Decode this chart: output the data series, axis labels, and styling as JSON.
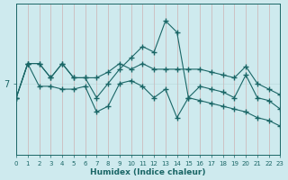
{
  "xlabel": "Humidex (Indice chaleur)",
  "background_color": "#ceeaee",
  "grid_color": "#aacccc",
  "line_color": "#1a6666",
  "x_ticks": [
    0,
    1,
    2,
    3,
    4,
    5,
    6,
    7,
    8,
    9,
    10,
    11,
    12,
    13,
    14,
    15,
    16,
    17,
    18,
    19,
    20,
    21,
    22,
    23
  ],
  "y_tick_label": "7",
  "y_tick_val": 7.0,
  "series1_y": [
    6.5,
    7.7,
    7.7,
    7.2,
    7.7,
    7.2,
    7.2,
    7.2,
    7.4,
    7.7,
    7.5,
    7.7,
    7.5,
    7.5,
    7.5,
    7.5,
    7.5,
    7.4,
    7.3,
    7.2,
    7.6,
    7.0,
    6.8,
    6.6
  ],
  "series2_y": [
    6.5,
    7.7,
    7.7,
    7.2,
    7.7,
    7.2,
    7.2,
    6.5,
    7.0,
    7.5,
    7.9,
    8.3,
    8.1,
    9.2,
    8.8,
    6.5,
    6.9,
    6.8,
    6.7,
    6.5,
    7.3,
    6.5,
    6.4,
    6.1
  ],
  "series3_y": [
    6.5,
    7.7,
    6.9,
    6.9,
    6.8,
    6.8,
    6.9,
    6.0,
    6.2,
    7.0,
    7.1,
    6.9,
    6.5,
    6.8,
    5.8,
    6.5,
    6.4,
    6.3,
    6.2,
    6.1,
    6.0,
    5.8,
    5.7,
    5.5
  ],
  "ylim_min": 4.5,
  "ylim_max": 9.8,
  "xlim_min": 0,
  "xlim_max": 23
}
